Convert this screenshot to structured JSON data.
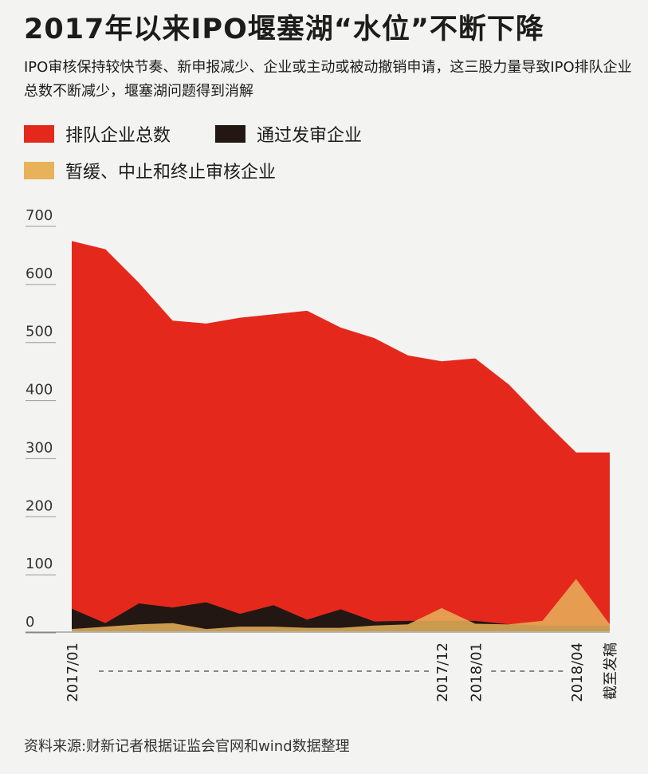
{
  "title": "2017年以来IPO堰塞湖“水位”不断下降",
  "subtitle": "IPO审核保持较快节奏、新申报减少、企业或主动或被动撤销申请，这三股力量导致IPO排队企业总数不断减少，堰塞湖问题得到消解",
  "legend": [
    {
      "label": "排队企业总数",
      "color": "#e4291c"
    },
    {
      "label": "通过发审企业",
      "color": "#221713"
    },
    {
      "label": "暂缓、中止和终止审核企业",
      "color": "#e8b25a"
    }
  ],
  "source": "资料来源:财新记者根据证监会官网和wind数据整理",
  "chart_data": {
    "type": "area",
    "ylim": [
      0,
      700
    ],
    "yticks": [
      0,
      100,
      200,
      300,
      400,
      500,
      600,
      700
    ],
    "xlabels": [
      {
        "index": 0,
        "label": "2017/01"
      },
      {
        "index": 11,
        "label": "2017/12"
      },
      {
        "index": 12,
        "label": "2018/01"
      },
      {
        "index": 15,
        "label": "2018/04"
      },
      {
        "index": 16,
        "label": "截至发稿"
      }
    ],
    "series": [
      {
        "name": "排队企业总数",
        "color": "#e4291c",
        "values": [
          672,
          658,
          600,
          535,
          530,
          540,
          546,
          552,
          523,
          505,
          475,
          465,
          470,
          425,
          365,
          308,
          308
        ]
      },
      {
        "name": "通过发审企业",
        "color": "#221713",
        "values": [
          39,
          14,
          48,
          41,
          50,
          30,
          45,
          20,
          38,
          17,
          18,
          18,
          18,
          12,
          10,
          10,
          10
        ]
      },
      {
        "name": "暂缓、中止和终止审核企业",
        "color": "#e8b25a",
        "values": [
          4,
          8,
          12,
          14,
          4,
          8,
          8,
          6,
          6,
          10,
          12,
          40,
          13,
          12,
          18,
          90,
          12
        ]
      }
    ]
  }
}
